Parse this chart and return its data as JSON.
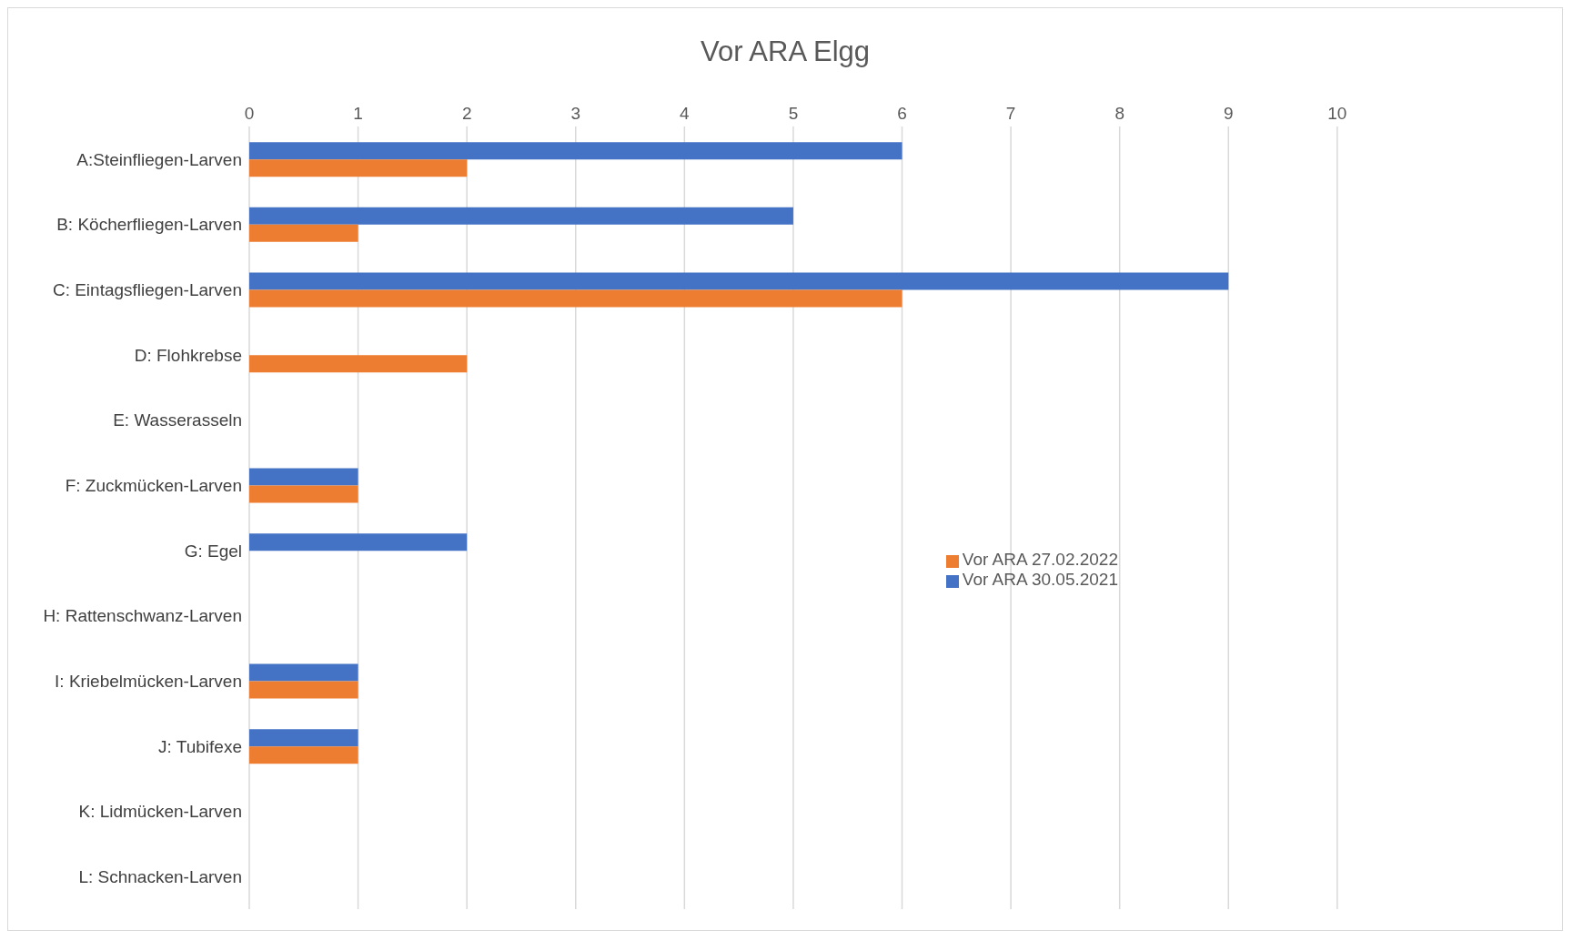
{
  "chart_data": {
    "type": "bar",
    "orientation": "horizontal",
    "title": "Vor ARA Elgg",
    "categories": [
      "A:Steinfliegen-Larven",
      "B: Köcherfliegen-Larven",
      "C: Eintagsfliegen-Larven",
      "D: Flohkrebse",
      "E: Wasserasseln",
      "F: Zuckmücken-Larven",
      "G: Egel",
      "H: Rattenschwanz-Larven",
      "I: Kriebelmücken-Larven",
      "J: Tubifexe",
      "K: Lidmücken-Larven",
      "L: Schnacken-Larven"
    ],
    "series": [
      {
        "name": "Vor ARA 30.05.2021",
        "color": "#4472c4",
        "values": [
          6,
          5,
          9,
          0,
          0,
          1,
          2,
          0,
          1,
          1,
          0,
          0
        ]
      },
      {
        "name": "Vor ARA 27.02.2022",
        "color": "#ed7d31",
        "values": [
          2,
          1,
          6,
          2,
          0,
          1,
          0,
          0,
          1,
          1,
          0,
          0
        ]
      }
    ],
    "xlim": [
      0,
      10
    ],
    "xticks": [
      0,
      1,
      2,
      3,
      4,
      5,
      6,
      7,
      8,
      9,
      10
    ],
    "grid": "x",
    "legend": "right"
  }
}
